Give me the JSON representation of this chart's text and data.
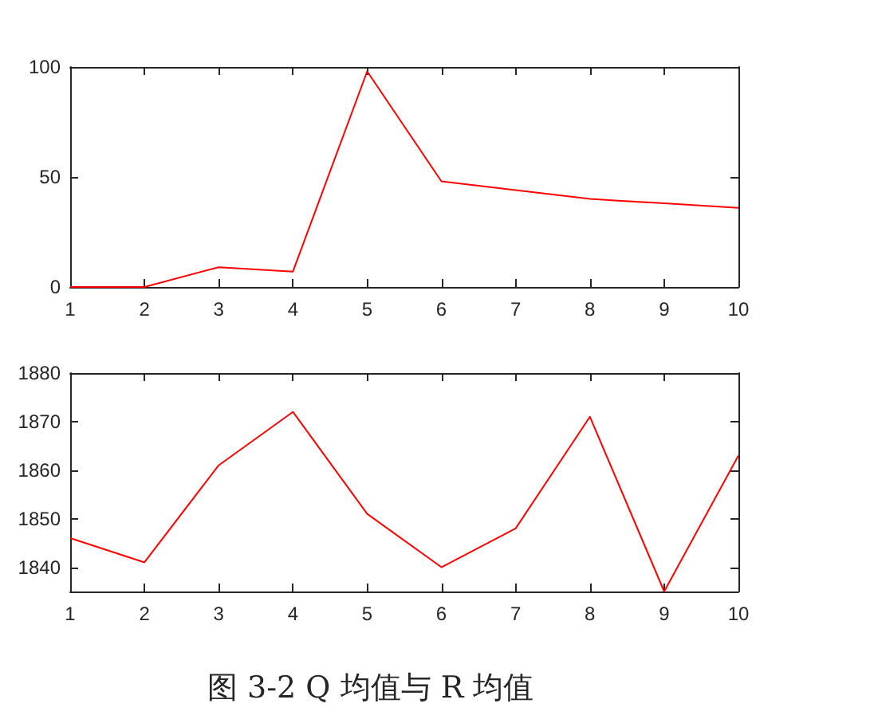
{
  "chart_data": [
    {
      "type": "line",
      "x": [
        1,
        2,
        3,
        4,
        5,
        6,
        7,
        8,
        9,
        10
      ],
      "series": [
        {
          "color": "#ff0000",
          "values": [
            0,
            0,
            9,
            7,
            98,
            48,
            44,
            40,
            38,
            36
          ]
        }
      ],
      "xlim": [
        1,
        10
      ],
      "xticks": [
        1,
        2,
        3,
        4,
        5,
        6,
        7,
        8,
        9,
        10
      ],
      "ylim": [
        0,
        100
      ],
      "yticks": [
        0,
        50,
        100
      ],
      "grid": false,
      "marker": "none"
    },
    {
      "type": "line",
      "x": [
        1,
        2,
        3,
        4,
        5,
        6,
        7,
        8,
        9,
        10
      ],
      "series": [
        {
          "color": "#ff0000",
          "values": [
            1846,
            1841,
            1861,
            1872,
            1851,
            1840,
            1848,
            1871,
            1835,
            1863
          ]
        }
      ],
      "xlim": [
        1,
        10
      ],
      "xticks": [
        1,
        2,
        3,
        4,
        5,
        6,
        7,
        8,
        9,
        10
      ],
      "ylim": [
        1835,
        1880
      ],
      "yticks": [
        1840,
        1850,
        1860,
        1870,
        1880
      ],
      "grid": false,
      "marker": "none",
      "annotations": [
        "图 3-2 Q 均值与 R 均值"
      ]
    }
  ]
}
